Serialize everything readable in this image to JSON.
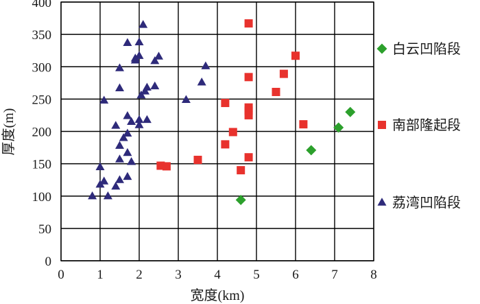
{
  "chart_data": {
    "type": "scatter",
    "title": "",
    "xlabel": "宽度(km)",
    "ylabel": "厚度(m)",
    "xlim": [
      0,
      8
    ],
    "ylim": [
      0,
      400
    ],
    "x_ticks": [
      "0",
      "1",
      "2",
      "3",
      "4",
      "5",
      "6",
      "7",
      "8"
    ],
    "y_ticks": [
      "0",
      "50",
      "100",
      "150",
      "200",
      "250",
      "300",
      "350",
      "400"
    ],
    "grid": true,
    "legend_position": "right",
    "series": [
      {
        "name": "白云凹陷段",
        "marker": "diamond",
        "color": "#2ca02c",
        "points": [
          [
            4.6,
            94
          ],
          [
            6.4,
            171
          ],
          [
            7.1,
            206
          ],
          [
            7.4,
            230
          ]
        ]
      },
      {
        "name": "南部隆起段",
        "marker": "square",
        "color": "#e8322d",
        "points": [
          [
            2.55,
            147
          ],
          [
            2.7,
            146
          ],
          [
            3.5,
            156
          ],
          [
            4.2,
            180
          ],
          [
            4.2,
            244
          ],
          [
            4.4,
            199
          ],
          [
            4.6,
            140
          ],
          [
            4.8,
            160
          ],
          [
            4.8,
            225
          ],
          [
            4.8,
            232
          ],
          [
            4.8,
            237
          ],
          [
            4.8,
            284
          ],
          [
            4.8,
            367
          ],
          [
            5.5,
            261
          ],
          [
            5.7,
            289
          ],
          [
            6.0,
            317
          ],
          [
            6.2,
            211
          ]
        ]
      },
      {
        "name": "荔湾凹陷段",
        "marker": "triangle",
        "color": "#2e2a7a",
        "points": [
          [
            0.8,
            100
          ],
          [
            1.0,
            118
          ],
          [
            1.0,
            145
          ],
          [
            1.1,
            123
          ],
          [
            1.1,
            248
          ],
          [
            1.2,
            100
          ],
          [
            1.4,
            115
          ],
          [
            1.4,
            209
          ],
          [
            1.5,
            125
          ],
          [
            1.5,
            157
          ],
          [
            1.5,
            178
          ],
          [
            1.5,
            267
          ],
          [
            1.5,
            298
          ],
          [
            1.6,
            190
          ],
          [
            1.7,
            130
          ],
          [
            1.7,
            167
          ],
          [
            1.7,
            197
          ],
          [
            1.7,
            224
          ],
          [
            1.7,
            337
          ],
          [
            1.8,
            153
          ],
          [
            1.8,
            215
          ],
          [
            1.9,
            310
          ],
          [
            1.9,
            313
          ],
          [
            2.0,
            210
          ],
          [
            2.0,
            218
          ],
          [
            2.0,
            317
          ],
          [
            2.0,
            338
          ],
          [
            2.05,
            256
          ],
          [
            2.1,
            365
          ],
          [
            2.15,
            262
          ],
          [
            2.2,
            218
          ],
          [
            2.2,
            268
          ],
          [
            2.4,
            270
          ],
          [
            2.4,
            309
          ],
          [
            2.5,
            316
          ],
          [
            3.2,
            249
          ],
          [
            3.6,
            276
          ],
          [
            3.7,
            301
          ]
        ]
      }
    ]
  }
}
